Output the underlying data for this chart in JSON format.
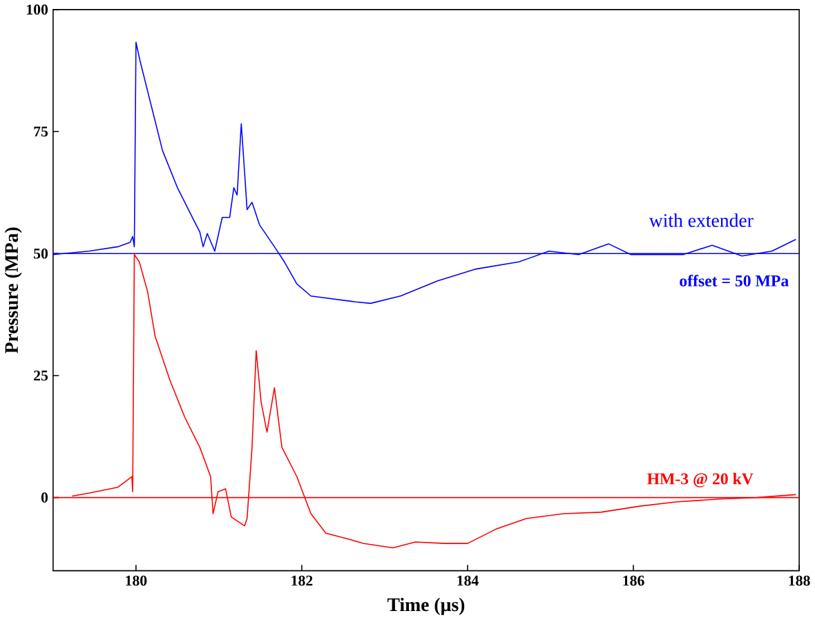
{
  "chart_data": {
    "type": "line",
    "xlabel": "Time  (µs)",
    "ylabel": "Pressure  (MPa)",
    "xlim": [
      179,
      188
    ],
    "ylim": [
      -15,
      100
    ],
    "xticks": [
      180,
      182,
      184,
      186,
      188
    ],
    "yticks": [
      0,
      25,
      50,
      75,
      100
    ],
    "grid": false,
    "legend": false,
    "marker": "none",
    "line_style": "solid",
    "series": [
      {
        "name": "with extender",
        "color": "#0000ff",
        "x": [
          179.0,
          179.43,
          179.78,
          179.93,
          179.96,
          179.98,
          180.0,
          180.05,
          180.14,
          180.23,
          180.32,
          180.5,
          180.68,
          180.77,
          180.81,
          180.86,
          180.95,
          181.04,
          181.13,
          181.18,
          181.22,
          181.27,
          181.31,
          181.34,
          181.4,
          181.49,
          181.67,
          181.79,
          181.94,
          182.11,
          182.38,
          182.65,
          182.83,
          183.19,
          183.64,
          184.09,
          184.62,
          184.98,
          185.34,
          185.7,
          185.97,
          186.6,
          186.95,
          187.31,
          187.67,
          187.96
        ],
        "values": [
          49.8,
          50.5,
          51.4,
          52.3,
          53.5,
          51.4,
          93.3,
          89.4,
          83.3,
          77.2,
          71.1,
          63.5,
          57.4,
          54.4,
          51.4,
          54.1,
          50.5,
          57.4,
          57.4,
          63.5,
          62.0,
          76.6,
          66.6,
          59.0,
          60.5,
          55.9,
          51.4,
          48.3,
          43.8,
          41.3,
          40.7,
          40.1,
          39.8,
          41.3,
          44.4,
          46.8,
          48.3,
          50.5,
          49.8,
          52.0,
          49.8,
          49.8,
          51.7,
          49.5,
          50.5,
          52.9
        ]
      },
      {
        "name": "HM-3 @ 20 kV",
        "color": "#ff0000",
        "x": [
          179.23,
          179.43,
          179.78,
          179.95,
          179.96,
          179.98,
          180.04,
          180.14,
          180.23,
          180.41,
          180.59,
          180.77,
          180.9,
          180.93,
          180.99,
          181.08,
          181.15,
          181.31,
          181.34,
          181.4,
          181.45,
          181.51,
          181.58,
          181.67,
          181.76,
          181.94,
          182.11,
          182.29,
          182.56,
          182.74,
          183.1,
          183.37,
          183.73,
          184.0,
          184.35,
          184.71,
          185.16,
          185.61,
          186.06,
          186.51,
          187.04,
          187.49,
          187.96
        ],
        "values": [
          0.3,
          0.9,
          2.1,
          4.3,
          1.2,
          49.8,
          48.3,
          42.2,
          33.1,
          24.0,
          16.4,
          10.3,
          4.3,
          -3.3,
          1.2,
          1.8,
          -4.0,
          -5.8,
          -4.3,
          10.3,
          30.1,
          19.5,
          13.4,
          22.5,
          10.3,
          4.3,
          -3.3,
          -7.3,
          -8.5,
          -9.4,
          -10.3,
          -9.1,
          -9.4,
          -9.4,
          -6.4,
          -4.3,
          -3.3,
          -3.0,
          -1.8,
          -0.9,
          -0.3,
          0,
          0.6
        ]
      }
    ],
    "ref_lines": [
      {
        "axis": "y",
        "value": 50,
        "label": "offset = 50 MPa",
        "color": "#0000ff"
      },
      {
        "axis": "y",
        "value": 0,
        "color": "#ff0000"
      }
    ]
  }
}
